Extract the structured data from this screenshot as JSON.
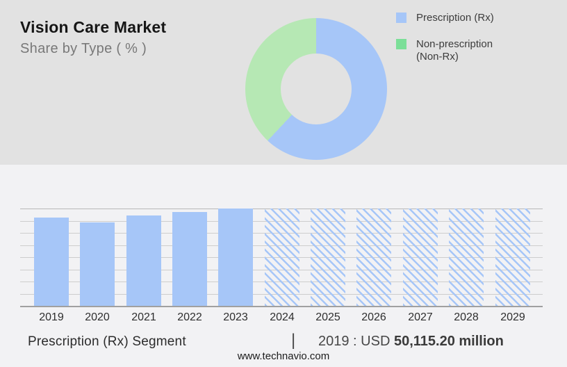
{
  "page": {
    "title": "Vision Care Market",
    "subtitle": "Share by Type ( % )",
    "footer": "www.technavio.com"
  },
  "colors": {
    "header_bg": "#e2e2e2",
    "body_bg": "#f2f2f4",
    "blue": "#a6c6f8",
    "green_donut": "#b6e8b4",
    "green_legend": "#7bdf98",
    "grid_line": "#cdcdcd",
    "axis_line": "#a0a0a0"
  },
  "legend": {
    "items": [
      {
        "label": "Prescription (Rx)",
        "color": "#a6c6f8"
      },
      {
        "label": "Non-prescription (Non-Rx)",
        "color": "#7bdf98"
      }
    ]
  },
  "caption": {
    "segment_label": "Prescription (Rx) Segment",
    "separator": "|",
    "value_prefix": "2019 : USD ",
    "value_bold": "50,115.20 million"
  },
  "chart_data": [
    {
      "type": "pie",
      "variant": "donut",
      "title": "Share by Type ( % )",
      "legend_position": "right",
      "segments": [
        {
          "label": "Prescription (Rx)",
          "share_pct": 62,
          "color": "#a6c6f8"
        },
        {
          "label": "Non-prescription (Non-Rx)",
          "share_pct": 38,
          "color": "#b6e8b4"
        }
      ]
    },
    {
      "type": "bar",
      "categories": [
        "2019",
        "2020",
        "2021",
        "2022",
        "2023",
        "2024",
        "2025",
        "2026",
        "2027",
        "2028",
        "2029"
      ],
      "known_values": {
        "2019": "USD 50,115.20 million"
      },
      "values_est_usd_million": [
        50115.2,
        47460,
        51440,
        53380,
        55380,
        null,
        null,
        null,
        null,
        null,
        null
      ],
      "forecast_style": "hatched",
      "grid": true,
      "ylabel": "",
      "xlabel": "",
      "items": [
        {
          "year": "2019",
          "rel_height": 0.905,
          "forecast": false
        },
        {
          "year": "2020",
          "rel_height": 0.857,
          "forecast": false
        },
        {
          "year": "2021",
          "rel_height": 0.929,
          "forecast": false
        },
        {
          "year": "2022",
          "rel_height": 0.964,
          "forecast": false
        },
        {
          "year": "2023",
          "rel_height": 1.0,
          "forecast": false
        },
        {
          "year": "2024",
          "rel_height": 1.0,
          "forecast": true
        },
        {
          "year": "2025",
          "rel_height": 1.0,
          "forecast": true
        },
        {
          "year": "2026",
          "rel_height": 1.0,
          "forecast": true
        },
        {
          "year": "2027",
          "rel_height": 1.0,
          "forecast": true
        },
        {
          "year": "2028",
          "rel_height": 1.0,
          "forecast": true
        },
        {
          "year": "2029",
          "rel_height": 1.0,
          "forecast": true
        }
      ]
    }
  ]
}
